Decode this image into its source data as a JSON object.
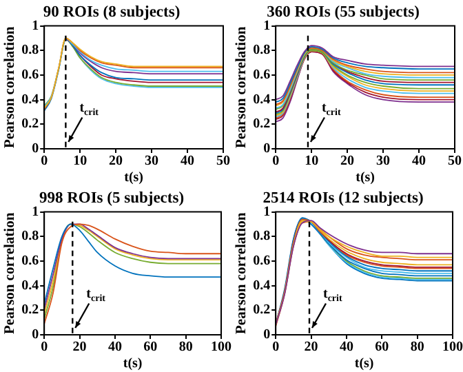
{
  "chart_data": [
    {
      "type": "line",
      "title": "90 ROIs (8 subjects)",
      "xlabel": "t(s)",
      "ylabel": "Pearson correlation",
      "x": [
        0,
        2,
        4,
        6,
        8,
        10,
        13,
        16,
        20,
        25,
        30,
        40,
        50
      ],
      "xlim": [
        0,
        50
      ],
      "xticks": [
        0,
        10,
        20,
        30,
        40,
        50
      ],
      "ylim": [
        0,
        1
      ],
      "yticks": [
        0,
        0.2,
        0.4,
        0.6,
        0.8,
        1
      ],
      "ref_lines": [
        {
          "axis": "x",
          "value": 6,
          "label": "t$_{crit}$",
          "line_style": "dashed"
        }
      ],
      "series": [
        {
          "color": "#edb120",
          "values": [
            0.33,
            0.42,
            0.65,
            0.9,
            0.86,
            0.81,
            0.75,
            0.71,
            0.69,
            0.67,
            0.67,
            0.67,
            0.67
          ]
        },
        {
          "color": "#d95319",
          "values": [
            0.32,
            0.42,
            0.65,
            0.9,
            0.86,
            0.8,
            0.74,
            0.7,
            0.68,
            0.66,
            0.66,
            0.66,
            0.66
          ]
        },
        {
          "color": "#4dbeee",
          "values": [
            0.34,
            0.43,
            0.65,
            0.9,
            0.85,
            0.79,
            0.72,
            0.68,
            0.65,
            0.64,
            0.63,
            0.63,
            0.63
          ]
        },
        {
          "color": "#7e2f8e",
          "values": [
            null,
            null,
            null,
            0.9,
            0.85,
            0.78,
            0.71,
            0.66,
            0.63,
            0.62,
            0.61,
            0.61,
            0.61
          ]
        },
        {
          "color": "#0072bd",
          "values": [
            0.31,
            0.41,
            0.64,
            0.89,
            0.84,
            0.76,
            0.68,
            0.62,
            0.58,
            0.57,
            0.56,
            0.56,
            0.56
          ]
        },
        {
          "color": "#a2142f",
          "values": [
            null,
            null,
            null,
            null,
            0.84,
            0.76,
            0.67,
            0.6,
            0.57,
            0.55,
            0.54,
            0.54,
            0.54
          ]
        },
        {
          "color": "#77ac30",
          "values": [
            0.35,
            0.43,
            0.65,
            0.89,
            0.83,
            0.74,
            0.65,
            0.58,
            0.54,
            0.52,
            0.51,
            0.51,
            0.51
          ]
        },
        {
          "color": "#4dbeee",
          "values": [
            0.34,
            0.42,
            0.64,
            0.89,
            0.83,
            0.74,
            0.64,
            0.57,
            0.53,
            0.51,
            0.5,
            0.5,
            0.5
          ]
        }
      ]
    },
    {
      "type": "line",
      "title": "360 ROIs (55 subjects)",
      "xlabel": "t(s)",
      "ylabel": "Pearson correlation",
      "x": [
        0,
        2,
        4,
        6,
        8,
        10,
        13,
        16,
        20,
        25,
        30,
        40,
        50
      ],
      "xlim": [
        0,
        50
      ],
      "xticks": [
        0,
        10,
        20,
        30,
        40,
        50
      ],
      "ylim": [
        0,
        1
      ],
      "yticks": [
        0,
        0.2,
        0.4,
        0.6,
        0.8,
        1
      ],
      "ref_lines": [
        {
          "axis": "x",
          "value": 9,
          "label": "t$_{crit}$",
          "line_style": "dashed"
        }
      ],
      "series": [
        {
          "color": "#7e2f8e",
          "values": [
            0.4,
            0.43,
            0.55,
            0.68,
            0.79,
            0.84,
            0.82,
            0.75,
            0.72,
            0.69,
            0.68,
            0.67,
            0.67
          ]
        },
        {
          "color": "#0072bd",
          "values": [
            0.38,
            0.41,
            0.53,
            0.66,
            0.78,
            0.83,
            0.81,
            0.74,
            0.7,
            0.67,
            0.66,
            0.65,
            0.65
          ]
        },
        {
          "color": "#d95319",
          "values": [
            0.36,
            0.39,
            0.51,
            0.65,
            0.78,
            0.82,
            0.8,
            0.73,
            0.68,
            0.65,
            0.63,
            0.62,
            0.62
          ]
        },
        {
          "color": "#edb120",
          "values": [
            0.35,
            0.38,
            0.5,
            0.64,
            0.77,
            0.82,
            0.8,
            0.72,
            0.67,
            0.63,
            0.61,
            0.6,
            0.6
          ]
        },
        {
          "color": "#4dbeee",
          "values": [
            0.33,
            0.36,
            0.48,
            0.63,
            0.77,
            0.82,
            0.8,
            0.71,
            0.66,
            0.61,
            0.59,
            0.58,
            0.58
          ]
        },
        {
          "color": "#77ac30",
          "values": [
            0.32,
            0.35,
            0.47,
            0.62,
            0.76,
            0.81,
            0.79,
            0.7,
            0.64,
            0.6,
            0.57,
            0.56,
            0.56
          ]
        },
        {
          "color": "#a2142f",
          "values": [
            0.3,
            0.33,
            0.46,
            0.61,
            0.76,
            0.81,
            0.79,
            0.7,
            0.63,
            0.58,
            0.55,
            0.54,
            0.54
          ]
        },
        {
          "color": "#0072bd",
          "values": [
            0.29,
            0.32,
            0.45,
            0.6,
            0.75,
            0.81,
            0.79,
            0.69,
            0.62,
            0.56,
            0.53,
            0.52,
            0.52
          ]
        },
        {
          "color": "#77ac30",
          "values": [
            0.28,
            0.31,
            0.44,
            0.6,
            0.75,
            0.8,
            0.78,
            0.68,
            0.6,
            0.54,
            0.51,
            0.49,
            0.49
          ]
        },
        {
          "color": "#edb120",
          "values": [
            0.27,
            0.3,
            0.43,
            0.59,
            0.74,
            0.8,
            0.78,
            0.67,
            0.59,
            0.52,
            0.49,
            0.47,
            0.47
          ]
        },
        {
          "color": "#4dbeee",
          "values": [
            0.26,
            0.29,
            0.42,
            0.58,
            0.74,
            0.8,
            0.78,
            0.66,
            0.57,
            0.5,
            0.47,
            0.45,
            0.45
          ]
        },
        {
          "color": "#d95319",
          "values": [
            0.25,
            0.28,
            0.41,
            0.58,
            0.74,
            0.8,
            0.78,
            0.65,
            0.55,
            0.48,
            0.44,
            0.42,
            0.42
          ]
        },
        {
          "color": "#a2142f",
          "values": [
            0.24,
            0.27,
            0.4,
            0.57,
            0.73,
            0.79,
            0.77,
            0.64,
            0.54,
            0.46,
            0.42,
            0.4,
            0.4
          ]
        },
        {
          "color": "#7e2f8e",
          "values": [
            0.22,
            0.25,
            0.38,
            0.56,
            0.73,
            0.79,
            0.77,
            0.63,
            0.53,
            0.44,
            0.4,
            0.38,
            0.38
          ]
        }
      ]
    },
    {
      "type": "line",
      "title": "998 ROIs (5 subjects)",
      "xlabel": "t(s)",
      "ylabel": "Pearson correlation",
      "x": [
        0,
        5,
        10,
        15,
        20,
        25,
        30,
        40,
        50,
        60,
        70,
        80,
        100
      ],
      "xlim": [
        0,
        100
      ],
      "xticks": [
        0,
        20,
        40,
        60,
        80,
        100
      ],
      "ylim": [
        0,
        1
      ],
      "yticks": [
        0,
        0.2,
        0.4,
        0.6,
        0.8,
        1
      ],
      "ref_lines": [
        {
          "axis": "x",
          "value": 16,
          "label": "t$_{crit}$",
          "line_style": "dashed"
        }
      ],
      "series": [
        {
          "color": "#0072bd",
          "values": [
            0.25,
            0.54,
            0.8,
            0.9,
            0.85,
            0.76,
            0.67,
            0.56,
            0.5,
            0.48,
            0.47,
            0.47,
            0.47
          ]
        },
        {
          "color": "#d95319",
          "values": [
            0.09,
            0.34,
            0.75,
            0.88,
            0.9,
            0.89,
            0.86,
            0.78,
            0.72,
            0.68,
            0.67,
            0.66,
            0.66
          ]
        },
        {
          "color": "#7e2f8e",
          "values": [
            0.21,
            0.49,
            0.78,
            0.9,
            0.9,
            0.86,
            0.81,
            0.71,
            0.66,
            0.63,
            0.62,
            0.62,
            0.62
          ]
        },
        {
          "color": "#edb120",
          "values": [
            0.17,
            0.44,
            0.77,
            0.9,
            0.89,
            0.85,
            0.8,
            0.7,
            0.65,
            0.62,
            0.61,
            0.61,
            0.61
          ]
        },
        {
          "color": "#77ac30",
          "values": [
            0.13,
            0.39,
            0.78,
            0.9,
            0.88,
            0.83,
            0.77,
            0.67,
            0.62,
            0.59,
            0.58,
            0.58,
            0.58
          ]
        }
      ]
    },
    {
      "type": "line",
      "title": "2514 ROIs (12 subjects)",
      "xlabel": "t(s)",
      "ylabel": "Pearson correlation",
      "x": [
        0,
        5,
        10,
        15,
        20,
        25,
        30,
        40,
        50,
        60,
        70,
        80,
        100
      ],
      "xlim": [
        0,
        100
      ],
      "xticks": [
        0,
        20,
        40,
        60,
        80,
        100
      ],
      "ylim": [
        0,
        1
      ],
      "yticks": [
        0,
        0.2,
        0.4,
        0.6,
        0.8,
        1
      ],
      "ref_lines": [
        {
          "axis": "x",
          "value": 19,
          "label": "t$_{crit}$",
          "line_style": "dashed"
        }
      ],
      "series": [
        {
          "color": "#7e2f8e",
          "values": [
            0.08,
            0.33,
            0.72,
            0.91,
            0.93,
            0.87,
            0.82,
            0.74,
            0.69,
            0.67,
            0.67,
            0.66,
            0.66
          ]
        },
        {
          "color": "#edb120",
          "values": [
            0.08,
            0.34,
            0.73,
            0.92,
            0.92,
            0.86,
            0.8,
            0.72,
            0.67,
            0.64,
            0.64,
            0.63,
            0.63
          ]
        },
        {
          "color": "#d95319",
          "values": [
            0.07,
            0.33,
            0.72,
            0.91,
            0.92,
            0.86,
            0.8,
            0.7,
            0.65,
            0.63,
            0.62,
            0.61,
            0.61
          ]
        },
        {
          "color": "#edb120",
          "values": [
            0.08,
            0.34,
            0.74,
            0.93,
            0.92,
            0.85,
            0.78,
            0.68,
            0.62,
            0.59,
            0.58,
            0.57,
            0.57
          ]
        },
        {
          "color": "#a2142f",
          "values": [
            0.08,
            0.35,
            0.75,
            0.93,
            0.92,
            0.85,
            0.77,
            0.66,
            0.6,
            0.57,
            0.56,
            0.55,
            0.55
          ]
        },
        {
          "color": "#d95319",
          "values": [
            0.09,
            0.35,
            0.75,
            0.94,
            0.92,
            0.84,
            0.77,
            0.65,
            0.59,
            0.56,
            0.55,
            0.54,
            0.54
          ]
        },
        {
          "color": "#0072bd",
          "values": [
            0.08,
            0.36,
            0.77,
            0.95,
            0.92,
            0.84,
            0.76,
            0.64,
            0.57,
            0.54,
            0.53,
            0.52,
            0.52
          ]
        },
        {
          "color": "#4dbeee",
          "values": [
            null,
            null,
            0.77,
            0.95,
            0.91,
            0.84,
            0.75,
            0.63,
            0.55,
            0.52,
            0.51,
            0.5,
            0.5
          ]
        },
        {
          "color": "#0072bd",
          "values": [
            0.09,
            0.37,
            0.78,
            0.95,
            0.91,
            0.83,
            0.74,
            0.61,
            0.54,
            0.5,
            0.49,
            0.48,
            0.48
          ]
        },
        {
          "color": "#77ac30",
          "values": [
            null,
            null,
            null,
            null,
            null,
            0.83,
            0.74,
            0.6,
            0.52,
            0.48,
            0.47,
            0.46,
            0.46
          ]
        },
        {
          "color": "#4dbeee",
          "values": [
            null,
            null,
            0.77,
            0.94,
            0.91,
            0.83,
            0.73,
            0.59,
            0.51,
            0.47,
            0.46,
            0.45,
            0.45
          ]
        },
        {
          "color": "#0072bd",
          "values": [
            0.08,
            0.35,
            0.76,
            0.94,
            0.9,
            0.82,
            0.73,
            0.58,
            0.5,
            0.46,
            0.45,
            0.44,
            0.44
          ]
        }
      ]
    }
  ]
}
